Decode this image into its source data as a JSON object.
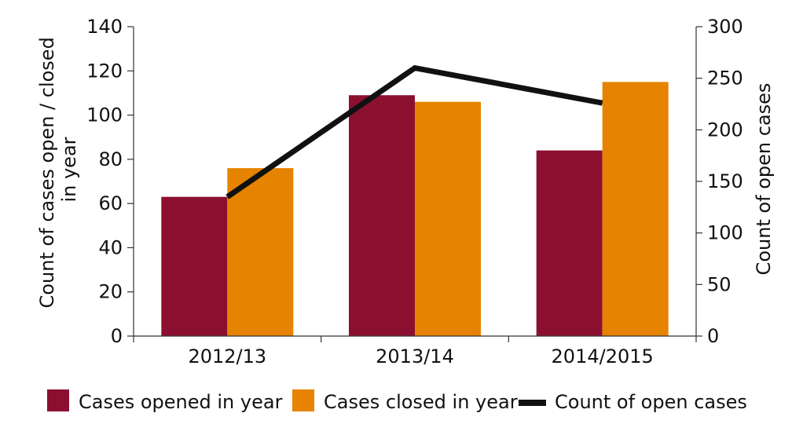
{
  "chart_data": {
    "type": "bar",
    "categories": [
      "2012/13",
      "2013/14",
      "2014/2015"
    ],
    "series": [
      {
        "name": "Cases opened in year",
        "type": "bar",
        "axis": "left",
        "values": [
          63,
          109,
          84
        ],
        "color": "#8b1030"
      },
      {
        "name": "Cases closed in year",
        "type": "bar",
        "axis": "left",
        "values": [
          76,
          106,
          115
        ],
        "color": "#e68300"
      },
      {
        "name": "Count of open cases",
        "type": "line",
        "axis": "right",
        "values": [
          135,
          260,
          226
        ],
        "color": "#111111"
      }
    ],
    "y_left": {
      "label_lines": [
        "Count of cases open / closed",
        "in year"
      ],
      "range": [
        0,
        140
      ],
      "ticks": [
        "0",
        "20",
        "40",
        "60",
        "80",
        "100",
        "120",
        "140"
      ]
    },
    "y_right": {
      "label": "Count of open cases",
      "range": [
        0,
        300
      ],
      "ticks": [
        "0",
        "50",
        "100",
        "150",
        "200",
        "250",
        "300"
      ]
    },
    "grid": false,
    "legend": "bottom"
  }
}
